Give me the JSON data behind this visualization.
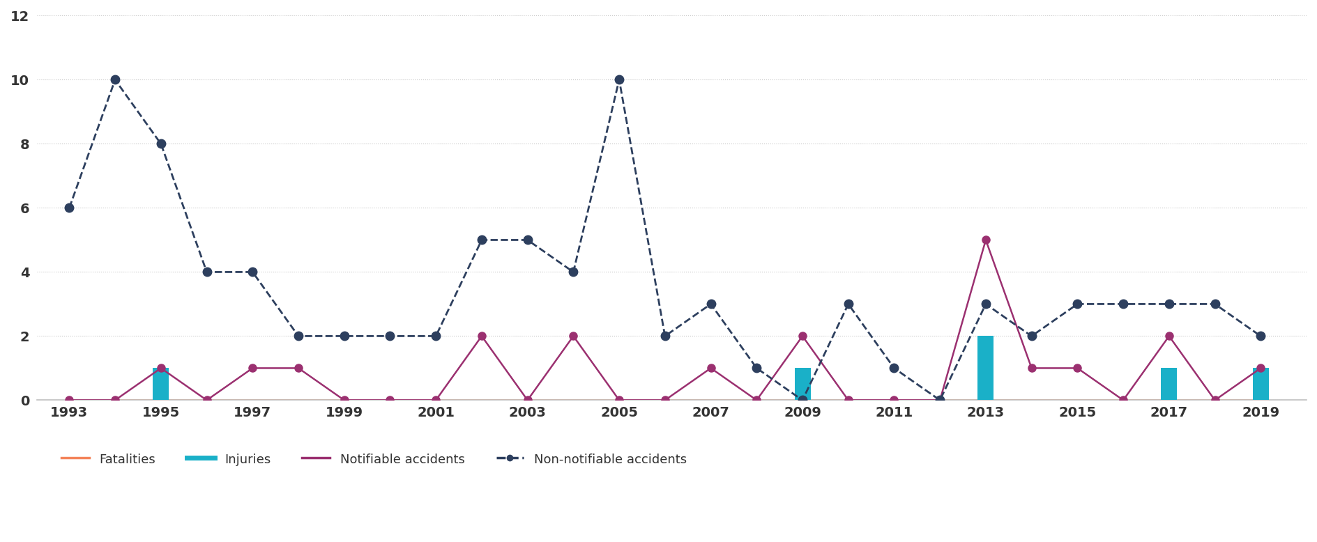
{
  "years": [
    1993,
    1994,
    1995,
    1996,
    1997,
    1998,
    1999,
    2000,
    2001,
    2002,
    2003,
    2004,
    2005,
    2006,
    2007,
    2008,
    2009,
    2010,
    2011,
    2012,
    2013,
    2014,
    2015,
    2016,
    2017,
    2018,
    2019
  ],
  "non_notifiable": [
    6,
    10,
    8,
    4,
    4,
    2,
    2,
    2,
    2,
    5,
    5,
    4,
    10,
    2,
    3,
    1,
    0,
    3,
    1,
    0,
    3,
    2,
    3,
    3,
    3,
    3,
    2
  ],
  "notifiable": [
    0,
    0,
    1,
    0,
    1,
    1,
    0,
    0,
    0,
    2,
    0,
    2,
    0,
    0,
    1,
    0,
    2,
    0,
    0,
    0,
    5,
    1,
    1,
    0,
    2,
    0,
    1
  ],
  "injuries_years": [
    1995,
    2009,
    2013,
    2017,
    2019
  ],
  "injuries_values": [
    1,
    1,
    2,
    1,
    1
  ],
  "fatalities_values": [
    0,
    0,
    0,
    0,
    0,
    0,
    0,
    0,
    0,
    0,
    0,
    0,
    0,
    0,
    0,
    0,
    0,
    0,
    0,
    0,
    0,
    0,
    0,
    0,
    0,
    0,
    0
  ],
  "non_notifiable_color": "#2d3f5e",
  "notifiable_color": "#9b3070",
  "injuries_color": "#1ab0c8",
  "fatalities_color": "#f4845a",
  "background_color": "#ffffff",
  "grid_color": "#c8c8c8",
  "axis_line_color": "#c0c0c0",
  "ylim": [
    0,
    12
  ],
  "yticks": [
    0,
    2,
    4,
    6,
    8,
    10,
    12
  ],
  "xtick_years": [
    1993,
    1995,
    1997,
    1999,
    2001,
    2003,
    2005,
    2007,
    2009,
    2011,
    2013,
    2015,
    2017,
    2019
  ],
  "bar_width": 0.35,
  "tick_fontsize": 14,
  "legend_fontsize": 13
}
